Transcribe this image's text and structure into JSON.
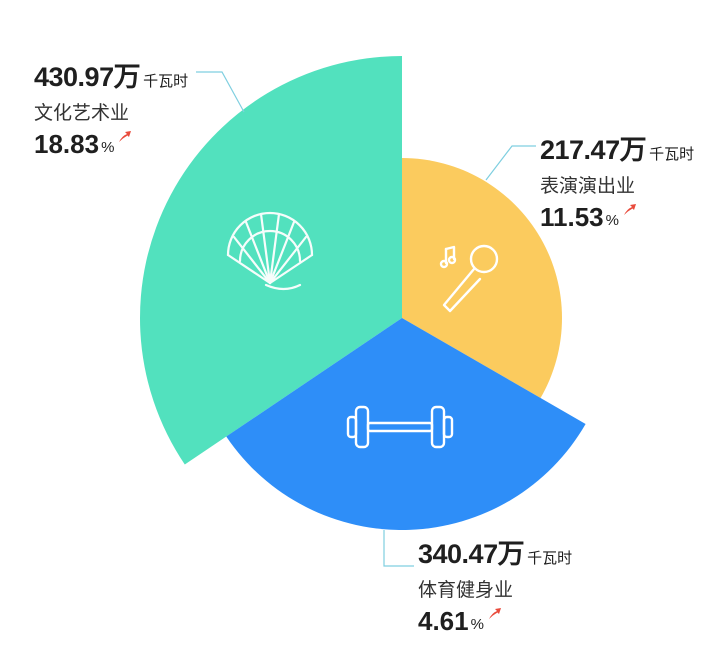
{
  "chart_data": {
    "type": "pie",
    "variant": "nightingale-rose",
    "unit": "千瓦时",
    "slices": [
      {
        "category": "文化艺术业",
        "value_text": "430.97万",
        "value": 430.97,
        "growth_text": "18.83",
        "growth": 18.83,
        "color": "#52E1BE",
        "icon": "folding-fan-icon",
        "trend": "up"
      },
      {
        "category": "表演演出业",
        "value_text": "217.47万",
        "value": 217.47,
        "growth_text": "11.53",
        "growth": 11.53,
        "color": "#FBCB5E",
        "icon": "microphone-icon",
        "trend": "up"
      },
      {
        "category": "体育健身业",
        "value_text": "340.47万",
        "value": 340.47,
        "growth_text": "4.61",
        "growth": 4.61,
        "color": "#2E8EF8",
        "icon": "dumbbell-icon",
        "trend": "up"
      }
    ],
    "percent_sign": "%",
    "arrow_color": "#E94B3C",
    "leader_color": "#7FCFE0"
  }
}
